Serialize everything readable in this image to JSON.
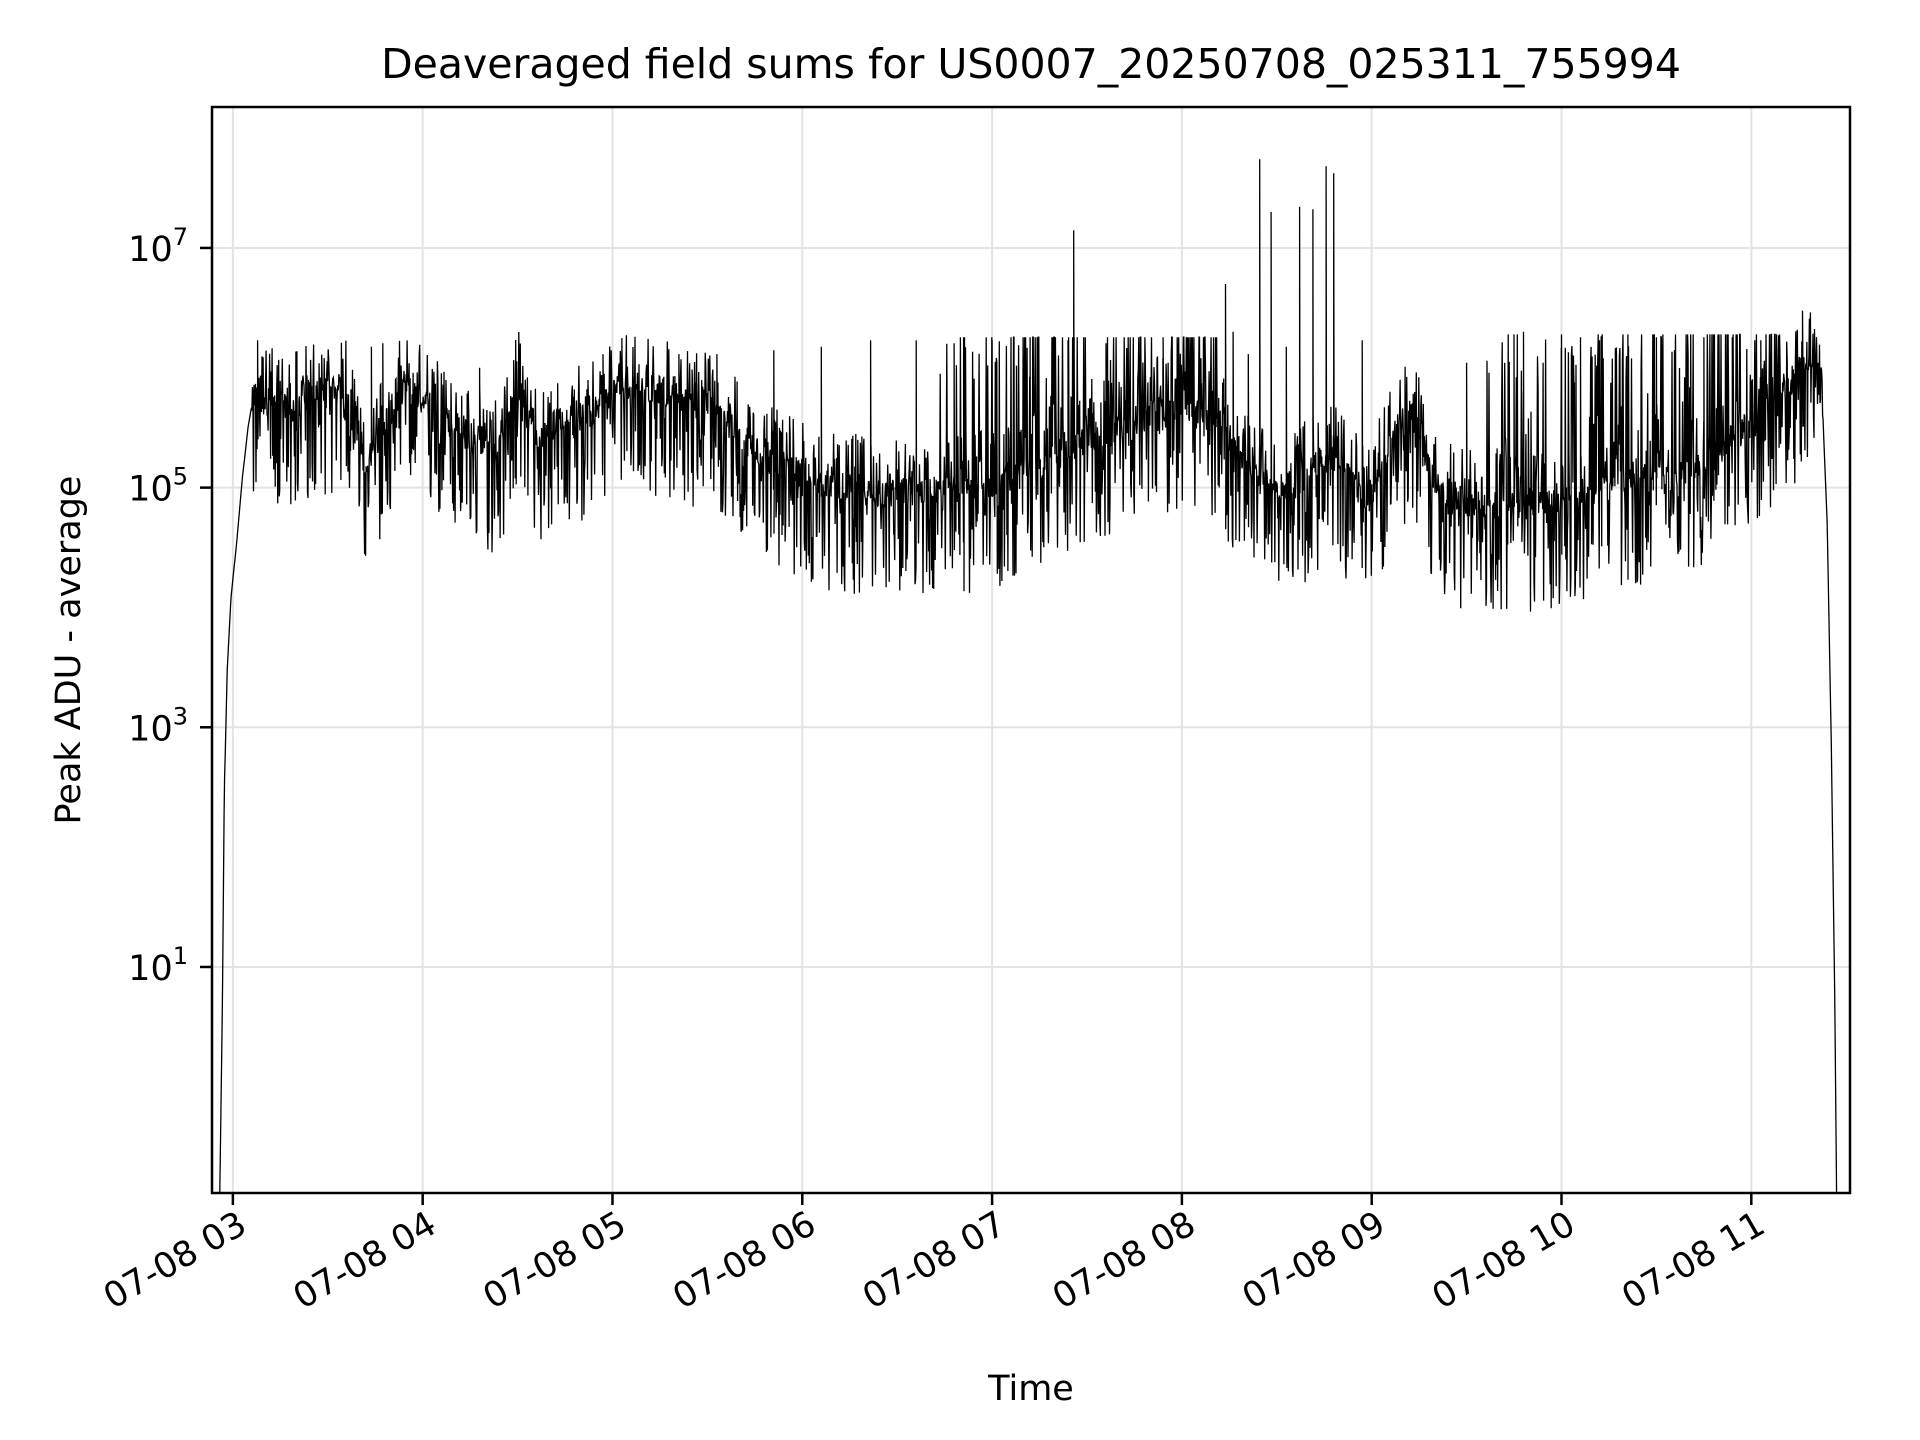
{
  "chart_data": {
    "type": "line",
    "title": "Deaveraged field sums for US0007_20250708_025311_755994",
    "xlabel": "Time",
    "ylabel": "Peak ADU - average",
    "yscale": "log",
    "grid": true,
    "x_ticks": [
      "07-08 03",
      "07-08 04",
      "07-08 05",
      "07-08 06",
      "07-08 07",
      "07-08 08",
      "07-08 09",
      "07-08 10",
      "07-08 11"
    ],
    "x_tick_hours": [
      3,
      4,
      5,
      6,
      7,
      8,
      9,
      10,
      11
    ],
    "x_range_hours": [
      2.89,
      11.52
    ],
    "y_ticks": [
      {
        "base": "10",
        "exp": "1",
        "value": 10
      },
      {
        "base": "10",
        "exp": "3",
        "value": 1000
      },
      {
        "base": "10",
        "exp": "5",
        "value": 100000
      },
      {
        "base": "10",
        "exp": "7",
        "value": 10000000
      }
    ],
    "ylim": [
      0.13,
      150000000
    ],
    "series": [
      {
        "color": "#000000",
        "points": [
          [
            2.93,
            0.1
          ],
          [
            2.945,
            5
          ],
          [
            2.955,
            300
          ],
          [
            2.97,
            3000
          ],
          [
            2.99,
            12000
          ],
          [
            3.02,
            35000
          ],
          [
            3.05,
            120000
          ],
          [
            3.08,
            320000
          ],
          [
            3.11,
            600000
          ],
          [
            3.15,
            500000
          ],
          [
            3.2,
            550000
          ],
          [
            3.3,
            450000
          ],
          [
            3.4,
            600000
          ],
          [
            3.5,
            700000
          ],
          [
            3.6,
            650000
          ],
          [
            3.65,
            250000
          ],
          [
            3.7,
            150000
          ],
          [
            3.8,
            350000
          ],
          [
            3.9,
            700000
          ],
          [
            4.0,
            550000
          ],
          [
            4.1,
            400000
          ],
          [
            4.2,
            300000
          ],
          [
            4.3,
            250000
          ],
          [
            4.4,
            200000
          ],
          [
            4.5,
            800000
          ],
          [
            4.55,
            400000
          ],
          [
            4.6,
            250000
          ],
          [
            4.7,
            350000
          ],
          [
            4.8,
            400000
          ],
          [
            4.9,
            450000
          ],
          [
            5.0,
            650000
          ],
          [
            5.1,
            750000
          ],
          [
            5.2,
            700000
          ],
          [
            5.3,
            600000
          ],
          [
            5.5,
            500000
          ],
          [
            5.6,
            350000
          ],
          [
            5.7,
            250000
          ],
          [
            5.8,
            180000
          ],
          [
            5.9,
            150000
          ],
          [
            6.0,
            130000
          ],
          [
            6.1,
            110000
          ],
          [
            6.2,
            100000
          ],
          [
            6.3,
            100000
          ],
          [
            6.4,
            85000
          ],
          [
            6.5,
            90000
          ],
          [
            6.6,
            95000
          ],
          [
            6.8,
            100000
          ],
          [
            7.0,
            110000
          ],
          [
            7.2,
            150000
          ],
          [
            7.4,
            200000
          ],
          [
            7.5,
            250000
          ],
          [
            7.6,
            300000
          ],
          [
            7.8,
            400000
          ],
          [
            8.0,
            500000
          ],
          [
            8.1,
            450000
          ],
          [
            8.2,
            350000
          ],
          [
            8.3,
            200000
          ],
          [
            8.4,
            120000
          ],
          [
            8.5,
            100000
          ],
          [
            8.6,
            110000
          ],
          [
            8.7,
            150000
          ],
          [
            8.8,
            180000
          ],
          [
            8.9,
            120000
          ],
          [
            8.98,
            70000
          ],
          [
            9.05,
            150000
          ],
          [
            9.1,
            250000
          ],
          [
            9.15,
            350000
          ],
          [
            9.2,
            400000
          ],
          [
            9.25,
            350000
          ],
          [
            9.3,
            150000
          ],
          [
            9.35,
            90000
          ],
          [
            9.5,
            75000
          ],
          [
            9.7,
            70000
          ],
          [
            9.9,
            70000
          ],
          [
            10.1,
            90000
          ],
          [
            10.2,
            100000
          ],
          [
            10.4,
            110000
          ],
          [
            10.6,
            130000
          ],
          [
            10.8,
            170000
          ],
          [
            10.9,
            250000
          ],
          [
            11.0,
            350000
          ],
          [
            11.1,
            450000
          ],
          [
            11.2,
            700000
          ],
          [
            11.25,
            1000000
          ],
          [
            11.3,
            1200000
          ],
          [
            11.35,
            800000
          ],
          [
            11.38,
            300000
          ],
          [
            11.4,
            50000
          ],
          [
            11.42,
            1000
          ],
          [
            11.44,
            5
          ],
          [
            11.45,
            0.1
          ]
        ],
        "spikes": [
          [
            3.13,
            1700000
          ],
          [
            3.73,
            1500000
          ],
          [
            3.79,
            1600000
          ],
          [
            4.3,
            1000000
          ],
          [
            4.95,
            1300000
          ],
          [
            5.05,
            1400000
          ],
          [
            5.35,
            1300000
          ],
          [
            5.55,
            1300000
          ],
          [
            5.85,
            1400000
          ],
          [
            6.1,
            1500000
          ],
          [
            6.36,
            1700000
          ],
          [
            6.6,
            1700000
          ],
          [
            6.8,
            1600000
          ],
          [
            6.85,
            1800000
          ],
          [
            7.0,
            1700000
          ],
          [
            7.2,
            1800000
          ],
          [
            7.4,
            1700000
          ],
          [
            7.43,
            14000000
          ],
          [
            7.6,
            1600000
          ],
          [
            7.9,
            1200000
          ],
          [
            8.1,
            1200000
          ],
          [
            8.23,
            5000000
          ],
          [
            8.27,
            2000000
          ],
          [
            8.35,
            1300000
          ],
          [
            8.41,
            55000000
          ],
          [
            8.47,
            20000000
          ],
          [
            8.55,
            1500000
          ],
          [
            8.62,
            22000000
          ],
          [
            8.69,
            21000000
          ],
          [
            8.76,
            48000000
          ],
          [
            8.8,
            42000000
          ],
          [
            8.95,
            1700000
          ],
          [
            9.5,
            1100000
          ],
          [
            9.75,
            1900000
          ],
          [
            9.8,
            2000000
          ],
          [
            10.0,
            1900000
          ],
          [
            10.1,
            1800000
          ],
          [
            10.2,
            1700000
          ],
          [
            10.35,
            1900000
          ],
          [
            10.5,
            1800000
          ],
          [
            10.6,
            1700000
          ],
          [
            10.75,
            1800000
          ],
          [
            10.9,
            1800000
          ],
          [
            11.05,
            1700000
          ],
          [
            11.27,
            3000000
          ]
        ]
      }
    ]
  }
}
